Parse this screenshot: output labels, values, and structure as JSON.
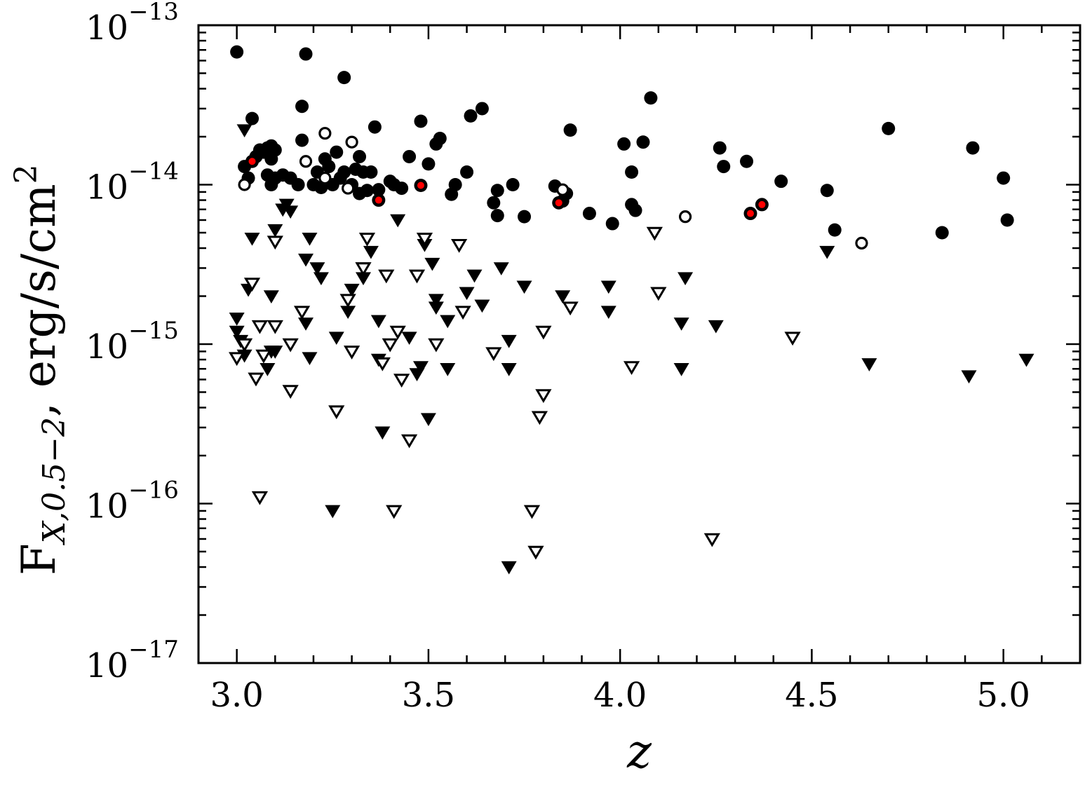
{
  "chart_data": {
    "type": "scatter",
    "xlabel": "z",
    "ylabel": "F",
    "ylabel_sub": "X,0.5−2",
    "ylabel_units": ", erg/s/cm",
    "ylabel_sup": "2",
    "xlim": [
      2.9,
      5.2
    ],
    "ylim": [
      1e-17,
      1e-13
    ],
    "yscale": "log",
    "grid": false,
    "x_ticks": [
      {
        "value": 3.0,
        "label": "3.0"
      },
      {
        "value": 3.5,
        "label": "3.5"
      },
      {
        "value": 4.0,
        "label": "4.0"
      },
      {
        "value": 4.5,
        "label": "4.5"
      },
      {
        "value": 5.0,
        "label": "5.0"
      }
    ],
    "y_ticks": [
      {
        "value": 1e-13,
        "base": "10",
        "exp": "−13"
      },
      {
        "value": 1e-14,
        "base": "10",
        "exp": "−14"
      },
      {
        "value": 1e-15,
        "base": "10",
        "exp": "−15"
      },
      {
        "value": 1e-16,
        "base": "10",
        "exp": "−16"
      },
      {
        "value": 1e-17,
        "base": "10",
        "exp": "−17"
      }
    ],
    "colors": {
      "black": "#000000",
      "red": "#ff0000",
      "white": "#ffffff"
    },
    "series": [
      {
        "marker": "circle-filled",
        "points": [
          [
            3.0,
            6.8e-14
          ],
          [
            3.18,
            6.6e-14
          ],
          [
            3.28,
            4.7e-14
          ],
          [
            3.04,
            2.6e-14
          ],
          [
            3.17,
            3.1e-14
          ],
          [
            3.17,
            1.9e-14
          ],
          [
            3.02,
            1.3e-14
          ],
          [
            3.03,
            1.1e-14
          ],
          [
            3.05,
            1.5e-14
          ],
          [
            3.06,
            1.65e-14
          ],
          [
            3.07,
            1.6e-14
          ],
          [
            3.08,
            1.7e-14
          ],
          [
            3.09,
            1.75e-14
          ],
          [
            3.1,
            1.65e-14
          ],
          [
            3.08,
            1.15e-14
          ],
          [
            3.09,
            1.45e-14
          ],
          [
            3.1,
            1.1e-14
          ],
          [
            3.09,
            1e-14
          ],
          [
            3.12,
            1.15e-14
          ],
          [
            3.14,
            1.1e-14
          ],
          [
            3.16,
            1e-14
          ],
          [
            3.2,
            1e-14
          ],
          [
            3.21,
            1.2e-14
          ],
          [
            3.22,
            9.6e-15
          ],
          [
            3.23,
            1.45e-14
          ],
          [
            3.24,
            1.3e-14
          ],
          [
            3.25,
            1e-14
          ],
          [
            3.26,
            1.6e-14
          ],
          [
            3.27,
            1.1e-14
          ],
          [
            3.28,
            1.2e-14
          ],
          [
            3.3,
            1e-14
          ],
          [
            3.31,
            1.25e-14
          ],
          [
            3.32,
            1.5e-14
          ],
          [
            3.33,
            1.2e-14
          ],
          [
            3.32,
            8.8e-15
          ],
          [
            3.34,
            9.2e-15
          ],
          [
            3.35,
            1.2e-14
          ],
          [
            3.36,
            2.3e-14
          ],
          [
            3.37,
            9.3e-15
          ],
          [
            3.4,
            1.05e-14
          ],
          [
            3.41,
            1e-14
          ],
          [
            3.43,
            9.5e-15
          ],
          [
            3.45,
            1.5e-14
          ],
          [
            3.48,
            2.5e-14
          ],
          [
            3.5,
            1.35e-14
          ],
          [
            3.52,
            1.8e-14
          ],
          [
            3.53,
            1.95e-14
          ],
          [
            3.56,
            8.7e-15
          ],
          [
            3.57,
            1e-14
          ],
          [
            3.6,
            1.2e-14
          ],
          [
            3.61,
            2.7e-14
          ],
          [
            3.64,
            3e-14
          ],
          [
            3.67,
            7.7e-15
          ],
          [
            3.68,
            9.2e-15
          ],
          [
            3.68,
            6.4e-15
          ],
          [
            3.72,
            1e-14
          ],
          [
            3.75,
            6.3e-15
          ],
          [
            3.83,
            9.8e-15
          ],
          [
            3.85,
            7.9e-15
          ],
          [
            3.86,
            8.8e-15
          ],
          [
            3.87,
            2.2e-14
          ],
          [
            3.92,
            6.6e-15
          ],
          [
            3.98,
            5.7e-15
          ],
          [
            4.01,
            1.8e-14
          ],
          [
            4.03,
            7.5e-15
          ],
          [
            4.03,
            1.2e-14
          ],
          [
            4.04,
            6.9e-15
          ],
          [
            4.06,
            1.85e-14
          ],
          [
            4.08,
            3.5e-14
          ],
          [
            4.26,
            1.7e-14
          ],
          [
            4.27,
            1.3e-14
          ],
          [
            4.33,
            1.4e-14
          ],
          [
            4.42,
            1.05e-14
          ],
          [
            4.54,
            9.2e-15
          ],
          [
            4.56,
            5.2e-15
          ],
          [
            4.7,
            2.25e-14
          ],
          [
            4.84,
            5e-15
          ],
          [
            4.92,
            1.7e-14
          ],
          [
            5.0,
            1.1e-14
          ],
          [
            5.01,
            6e-15
          ]
        ]
      },
      {
        "marker": "circle-filled-red-center",
        "points": [
          [
            3.04,
            1.4e-14
          ],
          [
            3.37,
            8e-15
          ],
          [
            3.48,
            9.9e-15
          ],
          [
            3.84,
            7.7e-15
          ],
          [
            4.34,
            6.6e-15
          ],
          [
            4.37,
            7.5e-15
          ]
        ]
      },
      {
        "marker": "circle-open",
        "points": [
          [
            3.02,
            1e-14
          ],
          [
            3.18,
            1.4e-14
          ],
          [
            3.23,
            2.1e-14
          ],
          [
            3.23,
            1.1e-14
          ],
          [
            3.3,
            1.85e-14
          ],
          [
            3.29,
            9.5e-15
          ],
          [
            3.85,
            9.3e-15
          ],
          [
            4.17,
            6.3e-15
          ],
          [
            4.63,
            4.3e-15
          ]
        ]
      },
      {
        "marker": "triangle-down-filled",
        "points": [
          [
            3.02,
            2.2e-14
          ],
          [
            3.04,
            4.6e-15
          ],
          [
            3.03,
            2.2e-15
          ],
          [
            3.09,
            2e-15
          ],
          [
            3.1,
            5.2e-15
          ],
          [
            3.12,
            7e-15
          ],
          [
            3.13,
            7.5e-15
          ],
          [
            3.14,
            6.8e-15
          ],
          [
            3.18,
            3.4e-15
          ],
          [
            3.19,
            4.6e-15
          ],
          [
            3.21,
            3e-15
          ],
          [
            3.22,
            2.6e-15
          ],
          [
            3.18,
            1.35e-15
          ],
          [
            3.19,
            8.2e-16
          ],
          [
            3.0,
            1.45e-15
          ],
          [
            3.0,
            1.2e-15
          ],
          [
            3.01,
            1.05e-15
          ],
          [
            3.02,
            8.5e-16
          ],
          [
            3.08,
            7e-16
          ],
          [
            3.09,
            9e-16
          ],
          [
            3.1,
            9e-16
          ],
          [
            3.26,
            1.1e-15
          ],
          [
            3.29,
            1.6e-15
          ],
          [
            3.3,
            2.2e-15
          ],
          [
            3.33,
            2.6e-15
          ],
          [
            3.33,
            3e-15
          ],
          [
            3.35,
            3.8e-15
          ],
          [
            3.37,
            1.4e-15
          ],
          [
            3.37,
            8e-16
          ],
          [
            3.42,
            6e-15
          ],
          [
            3.45,
            1.1e-15
          ],
          [
            3.47,
            6.5e-16
          ],
          [
            3.48,
            7.2e-16
          ],
          [
            3.49,
            4.2e-15
          ],
          [
            3.51,
            3.2e-15
          ],
          [
            3.52,
            1.9e-15
          ],
          [
            3.52,
            1.7e-15
          ],
          [
            3.55,
            1.4e-15
          ],
          [
            3.55,
            7e-16
          ],
          [
            3.6,
            2.1e-15
          ],
          [
            3.62,
            2.7e-15
          ],
          [
            3.64,
            1.75e-15
          ],
          [
            3.69,
            3e-15
          ],
          [
            3.71,
            1.05e-15
          ],
          [
            3.71,
            7e-16
          ],
          [
            3.75,
            2.3e-15
          ],
          [
            3.85,
            2e-15
          ],
          [
            3.97,
            2.3e-15
          ],
          [
            3.97,
            1.6e-15
          ],
          [
            4.16,
            1.35e-15
          ],
          [
            4.16,
            7e-16
          ],
          [
            4.17,
            2.6e-15
          ],
          [
            4.25,
            1.3e-15
          ],
          [
            4.54,
            3.8e-15
          ],
          [
            4.65,
            7.5e-16
          ],
          [
            4.91,
            6.3e-16
          ],
          [
            5.06,
            8e-16
          ],
          [
            3.38,
            2.8e-16
          ],
          [
            3.5,
            3.4e-16
          ],
          [
            3.25,
            9e-17
          ],
          [
            3.71,
            4e-17
          ]
        ]
      },
      {
        "marker": "triangle-down-open",
        "points": [
          [
            3.04,
            2.4e-15
          ],
          [
            3.1,
            4.4e-15
          ],
          [
            3.0,
            8.2e-16
          ],
          [
            3.02,
            1e-15
          ],
          [
            3.05,
            6.1e-16
          ],
          [
            3.06,
            1.3e-15
          ],
          [
            3.07,
            8.5e-16
          ],
          [
            3.1,
            1.3e-15
          ],
          [
            3.14,
            1e-15
          ],
          [
            3.14,
            5.1e-16
          ],
          [
            3.17,
            1.6e-15
          ],
          [
            3.26,
            3.8e-16
          ],
          [
            3.29,
            1.9e-15
          ],
          [
            3.3,
            9e-16
          ],
          [
            3.33,
            3e-15
          ],
          [
            3.34,
            4.6e-15
          ],
          [
            3.38,
            7.6e-16
          ],
          [
            3.39,
            2.7e-15
          ],
          [
            3.4,
            1e-15
          ],
          [
            3.42,
            1.2e-15
          ],
          [
            3.43,
            6e-16
          ],
          [
            3.45,
            2.5e-16
          ],
          [
            3.47,
            2.7e-15
          ],
          [
            3.49,
            4.6e-15
          ],
          [
            3.52,
            1e-15
          ],
          [
            3.58,
            4.2e-15
          ],
          [
            3.59,
            1.6e-15
          ],
          [
            3.67,
            8.8e-16
          ],
          [
            3.79,
            3.5e-16
          ],
          [
            3.8,
            1.2e-15
          ],
          [
            3.8,
            4.8e-16
          ],
          [
            3.87,
            1.7e-15
          ],
          [
            4.03,
            7.2e-16
          ],
          [
            4.09,
            5e-15
          ],
          [
            4.1,
            2.1e-15
          ],
          [
            4.45,
            1.1e-15
          ],
          [
            3.06,
            1.1e-16
          ],
          [
            3.41,
            9e-17
          ],
          [
            3.77,
            9e-17
          ],
          [
            3.78,
            5e-17
          ],
          [
            4.24,
            6e-17
          ]
        ]
      }
    ]
  }
}
